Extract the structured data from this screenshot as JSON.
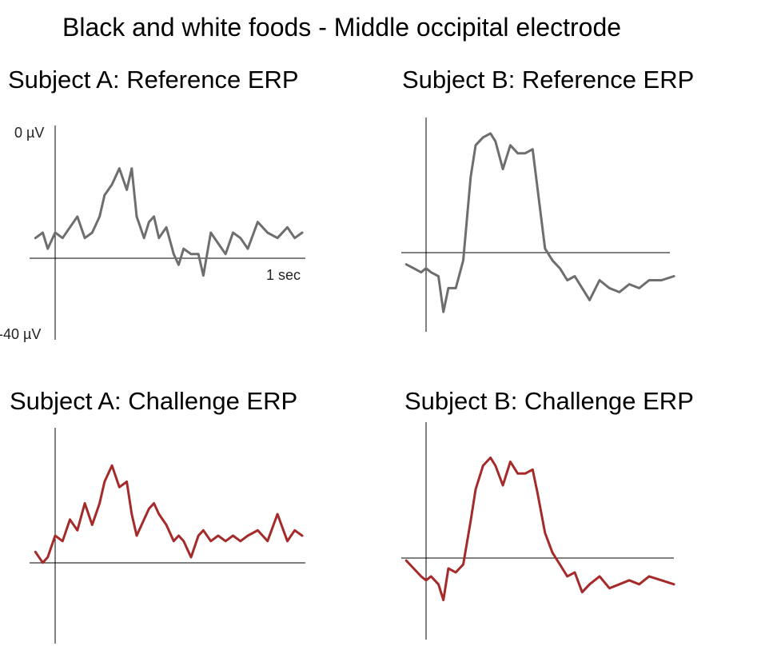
{
  "title": "Black and white foods - Middle occipital electrode",
  "colors": {
    "reference": "#6e6e6e",
    "challenge": "#a52a2a",
    "axes": "#000000"
  },
  "chart_data": [
    {
      "type": "line",
      "title": "Subject A: Reference ERP",
      "y_top_label": "0 µV",
      "y_bottom_label": "-40 µV",
      "x_end_label": "1 sec",
      "series": [
        {
          "x": [
            -0.08,
            -0.05,
            -0.03,
            0,
            0.03,
            0.06,
            0.09,
            0.12,
            0.15,
            0.18,
            0.2,
            0.23,
            0.26,
            0.29,
            0.31,
            0.33,
            0.36,
            0.38,
            0.4,
            0.42,
            0.45,
            0.48,
            0.5,
            0.52,
            0.55,
            0.58,
            0.6,
            0.63,
            0.66,
            0.69,
            0.72,
            0.75,
            0.78,
            0.82,
            0.86,
            0.9,
            0.94,
            0.97,
            1.0
          ],
          "values": [
            -21,
            -20,
            -23,
            -20,
            -21,
            -19,
            -17,
            -21,
            -20,
            -17,
            -13,
            -11,
            -8,
            -12,
            -8,
            -17,
            -21,
            -18,
            -17,
            -21,
            -19,
            -24,
            -26,
            -23,
            -24,
            -24,
            -28,
            -20,
            -22,
            -24,
            -20,
            -21,
            -23,
            -18,
            -20,
            -21,
            -19,
            -21,
            -20
          ]
        }
      ]
    },
    {
      "type": "line",
      "title": "Subject B: Reference ERP",
      "series": [
        {
          "x": [
            -0.08,
            -0.05,
            -0.02,
            0,
            0.02,
            0.05,
            0.07,
            0.09,
            0.12,
            0.15,
            0.18,
            0.2,
            0.23,
            0.26,
            0.28,
            0.31,
            0.34,
            0.37,
            0.4,
            0.43,
            0.45,
            0.48,
            0.51,
            0.54,
            0.57,
            0.6,
            0.63,
            0.66,
            0.7,
            0.74,
            0.78,
            0.82,
            0.86,
            0.9,
            0.95,
            1.0
          ],
          "values": [
            -22,
            -23,
            -24,
            -23,
            -24,
            -25,
            -34,
            -28,
            -28,
            -21,
            0,
            8,
            10,
            11,
            9,
            2,
            8,
            6,
            6,
            7,
            -3,
            -18,
            -21,
            -23,
            -26,
            -25,
            -28,
            -31,
            -26,
            -28,
            -29,
            -27,
            -28,
            -26,
            -26,
            -25
          ]
        }
      ]
    },
    {
      "type": "line",
      "title": "Subject A: Challenge ERP",
      "series": [
        {
          "x": [
            -0.08,
            -0.05,
            -0.03,
            0,
            0.03,
            0.06,
            0.09,
            0.12,
            0.15,
            0.18,
            0.2,
            0.23,
            0.26,
            0.29,
            0.31,
            0.33,
            0.36,
            0.38,
            0.4,
            0.42,
            0.45,
            0.48,
            0.5,
            0.52,
            0.55,
            0.58,
            0.6,
            0.63,
            0.66,
            0.69,
            0.72,
            0.75,
            0.78,
            0.82,
            0.86,
            0.9,
            0.94,
            0.97,
            1.0
          ],
          "values": [
            -23,
            -25,
            -24,
            -20,
            -21,
            -17,
            -19,
            -14,
            -18,
            -14,
            -10,
            -7,
            -11,
            -10,
            -16,
            -20,
            -17,
            -15,
            -14,
            -16,
            -18,
            -21,
            -20,
            -21,
            -24,
            -20,
            -19,
            -21,
            -20,
            -21,
            -20,
            -21,
            -20,
            -19,
            -21,
            -16,
            -21,
            -19,
            -20
          ]
        }
      ]
    },
    {
      "type": "line",
      "title": "Subject B: Challenge ERP",
      "series": [
        {
          "x": [
            -0.08,
            -0.05,
            -0.02,
            0,
            0.02,
            0.05,
            0.07,
            0.09,
            0.12,
            0.15,
            0.18,
            0.2,
            0.23,
            0.26,
            0.28,
            0.31,
            0.34,
            0.37,
            0.4,
            0.43,
            0.45,
            0.48,
            0.51,
            0.54,
            0.57,
            0.6,
            0.63,
            0.66,
            0.7,
            0.74,
            0.78,
            0.82,
            0.86,
            0.9,
            0.95,
            1.0
          ],
          "values": [
            -20,
            -22,
            -24,
            -25,
            -24,
            -26,
            -30,
            -22,
            -23,
            -21,
            -10,
            -2,
            4,
            6,
            4,
            -1,
            5,
            2,
            2,
            3,
            -3,
            -13,
            -18,
            -21,
            -24,
            -23,
            -28,
            -26,
            -24,
            -27,
            -26,
            -25,
            -26,
            -24,
            -25,
            -26
          ]
        }
      ]
    }
  ]
}
